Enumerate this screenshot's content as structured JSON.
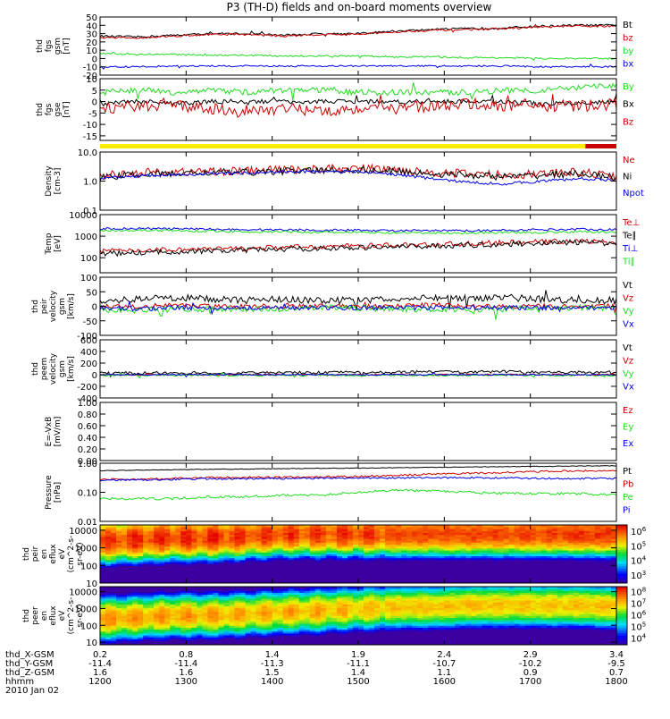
{
  "title": "P3 (TH-D) fields and on-board moments overview",
  "colors": {
    "black": "#000000",
    "red": "#cc0000",
    "green": "#22dd22",
    "blue": "#0000ee",
    "yellow": "#ffee00"
  },
  "chart_data": {
    "type": "line",
    "x_ticks": [
      "1200",
      "1300",
      "1400",
      "1500",
      "1600",
      "1700",
      "1800"
    ],
    "panels": [
      {
        "id": "fgs_gsm",
        "ylabel": [
          "thd",
          "fgs",
          "gsm",
          "[nT]"
        ],
        "ylim": [
          -20,
          50
        ],
        "log": false,
        "ticks": [
          "-20",
          "-10",
          "0",
          "10",
          "20",
          "30",
          "40",
          "50"
        ],
        "legend": [
          "Bt",
          "bz",
          "by",
          "bx"
        ],
        "series": [
          {
            "name": "Bt",
            "color": "black",
            "base": [
              27,
              26,
              28,
              30,
              30,
              28,
              30,
              30,
              33,
              35,
              36,
              37,
              39,
              40,
              40
            ],
            "noise": 1.2
          },
          {
            "name": "bz",
            "color": "red",
            "base": [
              25,
              25,
              27,
              29,
              29,
              27,
              29,
              29,
              32,
              34,
              35,
              36,
              38,
              39,
              39
            ],
            "noise": 1.2
          },
          {
            "name": "by",
            "color": "green",
            "base": [
              6,
              5,
              5,
              4,
              4,
              3,
              3,
              3,
              2,
              2,
              1,
              1,
              0,
              0,
              0
            ],
            "noise": 1
          },
          {
            "name": "bx",
            "color": "blue",
            "base": [
              -10,
              -10,
              -9,
              -9,
              -9,
              -9,
              -9,
              -9,
              -9,
              -9,
              -9,
              -9,
              -10,
              -10,
              -10
            ],
            "noise": 1
          }
        ]
      },
      {
        "id": "fgs_gse",
        "ylabel": [
          "thd",
          "fgs",
          "gse",
          "[nT]"
        ],
        "ylim": [
          -17,
          10
        ],
        "log": false,
        "ticks": [
          "-15",
          "-10",
          "-5",
          "0",
          "5",
          "10"
        ],
        "legend": [
          "By",
          "Bx",
          "Bz"
        ],
        "series": [
          {
            "name": "By",
            "color": "green",
            "base": [
              4,
              5,
              4,
              5,
              4,
              5,
              5,
              4,
              4,
              4,
              4,
              5,
              5,
              6,
              7
            ],
            "noise": 1.3
          },
          {
            "name": "Bx",
            "color": "black",
            "base": [
              -1,
              0,
              -1,
              0,
              0,
              0,
              0,
              0,
              0,
              0,
              0,
              0,
              -1,
              -1,
              0
            ],
            "noise": 1
          },
          {
            "name": "Bz",
            "color": "red",
            "base": [
              -3,
              -2,
              -2,
              -3,
              -4,
              -3,
              -4,
              -3,
              -3,
              -2,
              -1,
              -2,
              -2,
              -2,
              -1
            ],
            "noise": 2.5
          }
        ]
      },
      {
        "id": "density",
        "ylabel": [
          "Density",
          "[cm-3]"
        ],
        "ylim": [
          0.1,
          10
        ],
        "log": true,
        "ticks": [
          "0.1",
          "1.0",
          "10.0"
        ],
        "legend": [
          "Ne",
          "Ni",
          "Npot"
        ],
        "series": [
          {
            "name": "Ne",
            "color": "red",
            "base": [
              1.5,
              2,
              2,
              2.2,
              2.2,
              2.5,
              2.6,
              2.7,
              2.5,
              2,
              1.8,
              1.6,
              1.8,
              2,
              1.5
            ],
            "noise": 0.15,
            "logn": true
          },
          {
            "name": "Ni",
            "color": "black",
            "base": [
              1.3,
              1.7,
              1.8,
              2,
              2,
              2.2,
              2.3,
              2.4,
              2.2,
              1.8,
              1.6,
              1.4,
              1.6,
              1.8,
              1.3
            ],
            "noise": 0.12,
            "logn": true
          },
          {
            "name": "Npot",
            "color": "blue",
            "base": [
              1.2,
              1.5,
              1.6,
              1.8,
              1.9,
              2.1,
              2.2,
              2.1,
              1.7,
              1.2,
              0.9,
              0.8,
              1,
              1.2,
              1.1
            ],
            "noise": 0.05,
            "logn": true
          }
        ]
      },
      {
        "id": "temp",
        "ylabel": [
          "Temp",
          "[eV]"
        ],
        "ylim": [
          20,
          10000
        ],
        "log": true,
        "ticks": [
          "100",
          "1000",
          "10000"
        ],
        "legend": [
          "Te⊥",
          "Te∥",
          "Ti⊥",
          "Ti∥"
        ],
        "series": [
          {
            "name": "Te⊥",
            "color": "red",
            "base": [
              200,
              220,
              240,
              250,
              270,
              300,
              330,
              350,
              380,
              400,
              450,
              500,
              550,
              600,
              500
            ],
            "noise": 0.12,
            "logn": true
          },
          {
            "name": "Te∥",
            "color": "black",
            "base": [
              150,
              170,
              190,
              200,
              220,
              250,
              270,
              290,
              320,
              350,
              380,
              420,
              480,
              520,
              450
            ],
            "noise": 0.12,
            "logn": true
          },
          {
            "name": "Ti⊥",
            "color": "blue",
            "base": [
              2200,
              2300,
              2200,
              2100,
              2000,
              2000,
              1900,
              1900,
              1800,
              1800,
              1800,
              1900,
              2000,
              2100,
              2000
            ],
            "noise": 0.05,
            "logn": true
          },
          {
            "name": "Ti∥",
            "color": "green",
            "base": [
              1800,
              1900,
              1800,
              1700,
              1600,
              1600,
              1500,
              1500,
              1400,
              1400,
              1400,
              1500,
              1500,
              1600,
              1500
            ],
            "noise": 0.05,
            "logn": true
          }
        ]
      },
      {
        "id": "peir_v",
        "ylabel": [
          "thd",
          "peir",
          "velocity",
          "gsm",
          "[km/s]"
        ],
        "ylim": [
          -100,
          100
        ],
        "log": false,
        "ticks": [
          "-100",
          "-50",
          "0",
          "50",
          "100"
        ],
        "legend": [
          "Vt",
          "Vz",
          "Vy",
          "Vx"
        ],
        "series": [
          {
            "name": "Vt",
            "color": "black",
            "base": [
              20,
              25,
              30,
              25,
              20,
              25,
              20,
              20,
              25,
              30,
              30,
              30,
              25,
              20,
              20
            ],
            "noise": 12
          },
          {
            "name": "Vz",
            "color": "red",
            "base": [
              0,
              0,
              5,
              0,
              0,
              0,
              0,
              0,
              0,
              5,
              0,
              0,
              0,
              0,
              0
            ],
            "noise": 8
          },
          {
            "name": "Vy",
            "color": "green",
            "base": [
              -10,
              -15,
              -10,
              -10,
              -10,
              -10,
              -5,
              -5,
              -10,
              -10,
              -10,
              -10,
              -5,
              -5,
              -5
            ],
            "noise": 10
          },
          {
            "name": "Vx",
            "color": "blue",
            "base": [
              -5,
              -10,
              -5,
              -5,
              -5,
              -5,
              -5,
              -5,
              -5,
              -5,
              -5,
              -5,
              -5,
              -5,
              -5
            ],
            "noise": 8
          }
        ]
      },
      {
        "id": "peem_v",
        "ylabel": [
          "thd",
          "peem",
          "velocity",
          "gsm",
          "[km/s]"
        ],
        "ylim": [
          -400,
          600
        ],
        "log": false,
        "ticks": [
          "-400",
          "-200",
          "0",
          "200",
          "400",
          "600"
        ],
        "legend": [
          "Vt",
          "Vz",
          "Vy",
          "Vx"
        ],
        "series": [
          {
            "name": "Vt",
            "color": "black",
            "base": [
              30,
              30,
              30,
              30,
              30,
              35,
              35,
              40,
              40,
              50,
              50,
              50,
              40,
              40,
              30
            ],
            "noise": 25
          },
          {
            "name": "Vz",
            "color": "red",
            "base": [
              0,
              0,
              0,
              0,
              0,
              0,
              0,
              0,
              0,
              0,
              0,
              0,
              0,
              0,
              0
            ],
            "noise": 15
          },
          {
            "name": "Vy",
            "color": "green",
            "base": [
              -10,
              -10,
              -10,
              -10,
              -10,
              -10,
              -10,
              -10,
              -10,
              -10,
              -10,
              -10,
              -10,
              -10,
              -10
            ],
            "noise": 15
          },
          {
            "name": "Vx",
            "color": "blue",
            "base": [
              0,
              0,
              0,
              0,
              0,
              0,
              0,
              0,
              0,
              0,
              0,
              0,
              0,
              0,
              0
            ],
            "noise": 10
          }
        ]
      },
      {
        "id": "efield",
        "ylabel": [
          "E=-VxB",
          "[mV/m]"
        ],
        "ylim": [
          0,
          1
        ],
        "log": false,
        "ticks": [
          "0.00",
          "0.20",
          "0.40",
          "0.60",
          "0.80",
          "1.00"
        ],
        "legend": [
          "Ez",
          "Ey",
          "Ex"
        ],
        "series": []
      },
      {
        "id": "pressure",
        "ylabel": [
          "Pressure",
          "[nPa]"
        ],
        "ylim": [
          0.01,
          1
        ],
        "log": true,
        "ticks": [
          "0.01",
          "0.10",
          "1.00"
        ],
        "legend": [
          "Pt",
          "Pb",
          "Pe",
          "Pi"
        ],
        "series": [
          {
            "name": "Pt",
            "color": "black",
            "base": [
              0.55,
              0.58,
              0.6,
              0.62,
              0.63,
              0.65,
              0.67,
              0.68,
              0.7,
              0.72,
              0.74,
              0.76,
              0.78,
              0.8,
              0.82
            ],
            "noise": 0.01,
            "logn": true
          },
          {
            "name": "Pb",
            "color": "red",
            "base": [
              0.28,
              0.28,
              0.3,
              0.32,
              0.33,
              0.33,
              0.34,
              0.35,
              0.38,
              0.42,
              0.45,
              0.48,
              0.52,
              0.55,
              0.55
            ],
            "noise": 0.03,
            "logn": true
          },
          {
            "name": "Pe",
            "color": "green",
            "base": [
              0.06,
              0.06,
              0.06,
              0.07,
              0.07,
              0.08,
              0.08,
              0.1,
              0.12,
              0.11,
              0.1,
              0.09,
              0.09,
              0.09,
              0.08
            ],
            "noise": 0.04,
            "logn": true
          },
          {
            "name": "Pi",
            "color": "blue",
            "base": [
              0.26,
              0.27,
              0.28,
              0.29,
              0.29,
              0.3,
              0.3,
              0.31,
              0.31,
              0.32,
              0.32,
              0.31,
              0.3,
              0.3,
              0.3
            ],
            "noise": 0.03,
            "logn": true
          }
        ]
      },
      {
        "id": "peir_spec",
        "type": "heatmap",
        "ylabel": [
          "thd",
          "peir",
          "en",
          "eflux",
          "eV",
          "(cm^2-s-",
          "sr-eV)"
        ],
        "ylim": [
          10,
          20000
        ],
        "log": true,
        "ticks": [
          "10",
          "100",
          "1000",
          "10000"
        ],
        "colorbar_ticks": [
          "10^3",
          "10^4",
          "10^5",
          "10^6"
        ],
        "clim": [
          2.5,
          6.5
        ],
        "peak_logE": [
          3.4,
          3.5,
          3.6,
          3.6,
          3.7,
          3.8,
          3.8,
          3.8,
          3.8,
          3.8,
          3.8,
          3.8,
          3.8,
          3.8,
          3.8
        ],
        "peak_level": [
          6.1,
          6.2,
          6.2,
          6.2,
          6.1,
          6.1,
          6.1,
          6.1,
          6.1,
          6.1,
          6.1,
          6.1,
          6.1,
          6.2,
          6.2
        ],
        "width": [
          0.95,
          0.95,
          0.95,
          0.95,
          0.95,
          0.95,
          0.95,
          0.95,
          0.95,
          0.95,
          0.95,
          0.95,
          0.95,
          0.95,
          0.95
        ]
      },
      {
        "id": "peer_spec",
        "type": "heatmap",
        "ylabel": [
          "thd",
          "peer",
          "en",
          "eflux",
          "eV",
          "(cm^2-s-",
          "sr-eV)"
        ],
        "ylim": [
          7,
          20000
        ],
        "log": true,
        "ticks": [
          "10",
          "100",
          "1000",
          "10000"
        ],
        "colorbar_ticks": [
          "10^4",
          "10^5",
          "10^6",
          "10^7",
          "10^8"
        ],
        "clim": [
          3.5,
          8.5
        ],
        "peak_logE": [
          2.4,
          2.5,
          2.6,
          2.6,
          2.7,
          2.8,
          2.9,
          3.0,
          3.1,
          3.1,
          3.2,
          3.2,
          3.2,
          3.2,
          3.1
        ],
        "peak_level": [
          7.4,
          7.3,
          7.3,
          7.3,
          7.2,
          7.2,
          7.2,
          7.1,
          7.1,
          7.1,
          7.1,
          7.1,
          7.1,
          7.1,
          7.1
        ],
        "width": [
          0.9,
          0.9,
          0.9,
          0.9,
          0.9,
          0.9,
          0.9,
          0.9,
          0.9,
          0.9,
          0.9,
          0.9,
          0.9,
          0.9,
          0.9
        ]
      }
    ],
    "ephemeris": {
      "labels": [
        "thd_X-GSM",
        "thd_Y-GSM",
        "thd_Z-GSM",
        "hhmm",
        "2010 Jan 02"
      ],
      "X": [
        "0.2",
        "0.8",
        "1.4",
        "1.9",
        "2.4",
        "2.9",
        "3.4"
      ],
      "Y": [
        "-11.4",
        "-11.4",
        "-11.3",
        "-11.1",
        "-10.7",
        "-10.2",
        "-9.5"
      ],
      "Z": [
        "1.6",
        "1.6",
        "1.5",
        "1.4",
        "1.1",
        "0.9",
        "0.7"
      ]
    }
  }
}
